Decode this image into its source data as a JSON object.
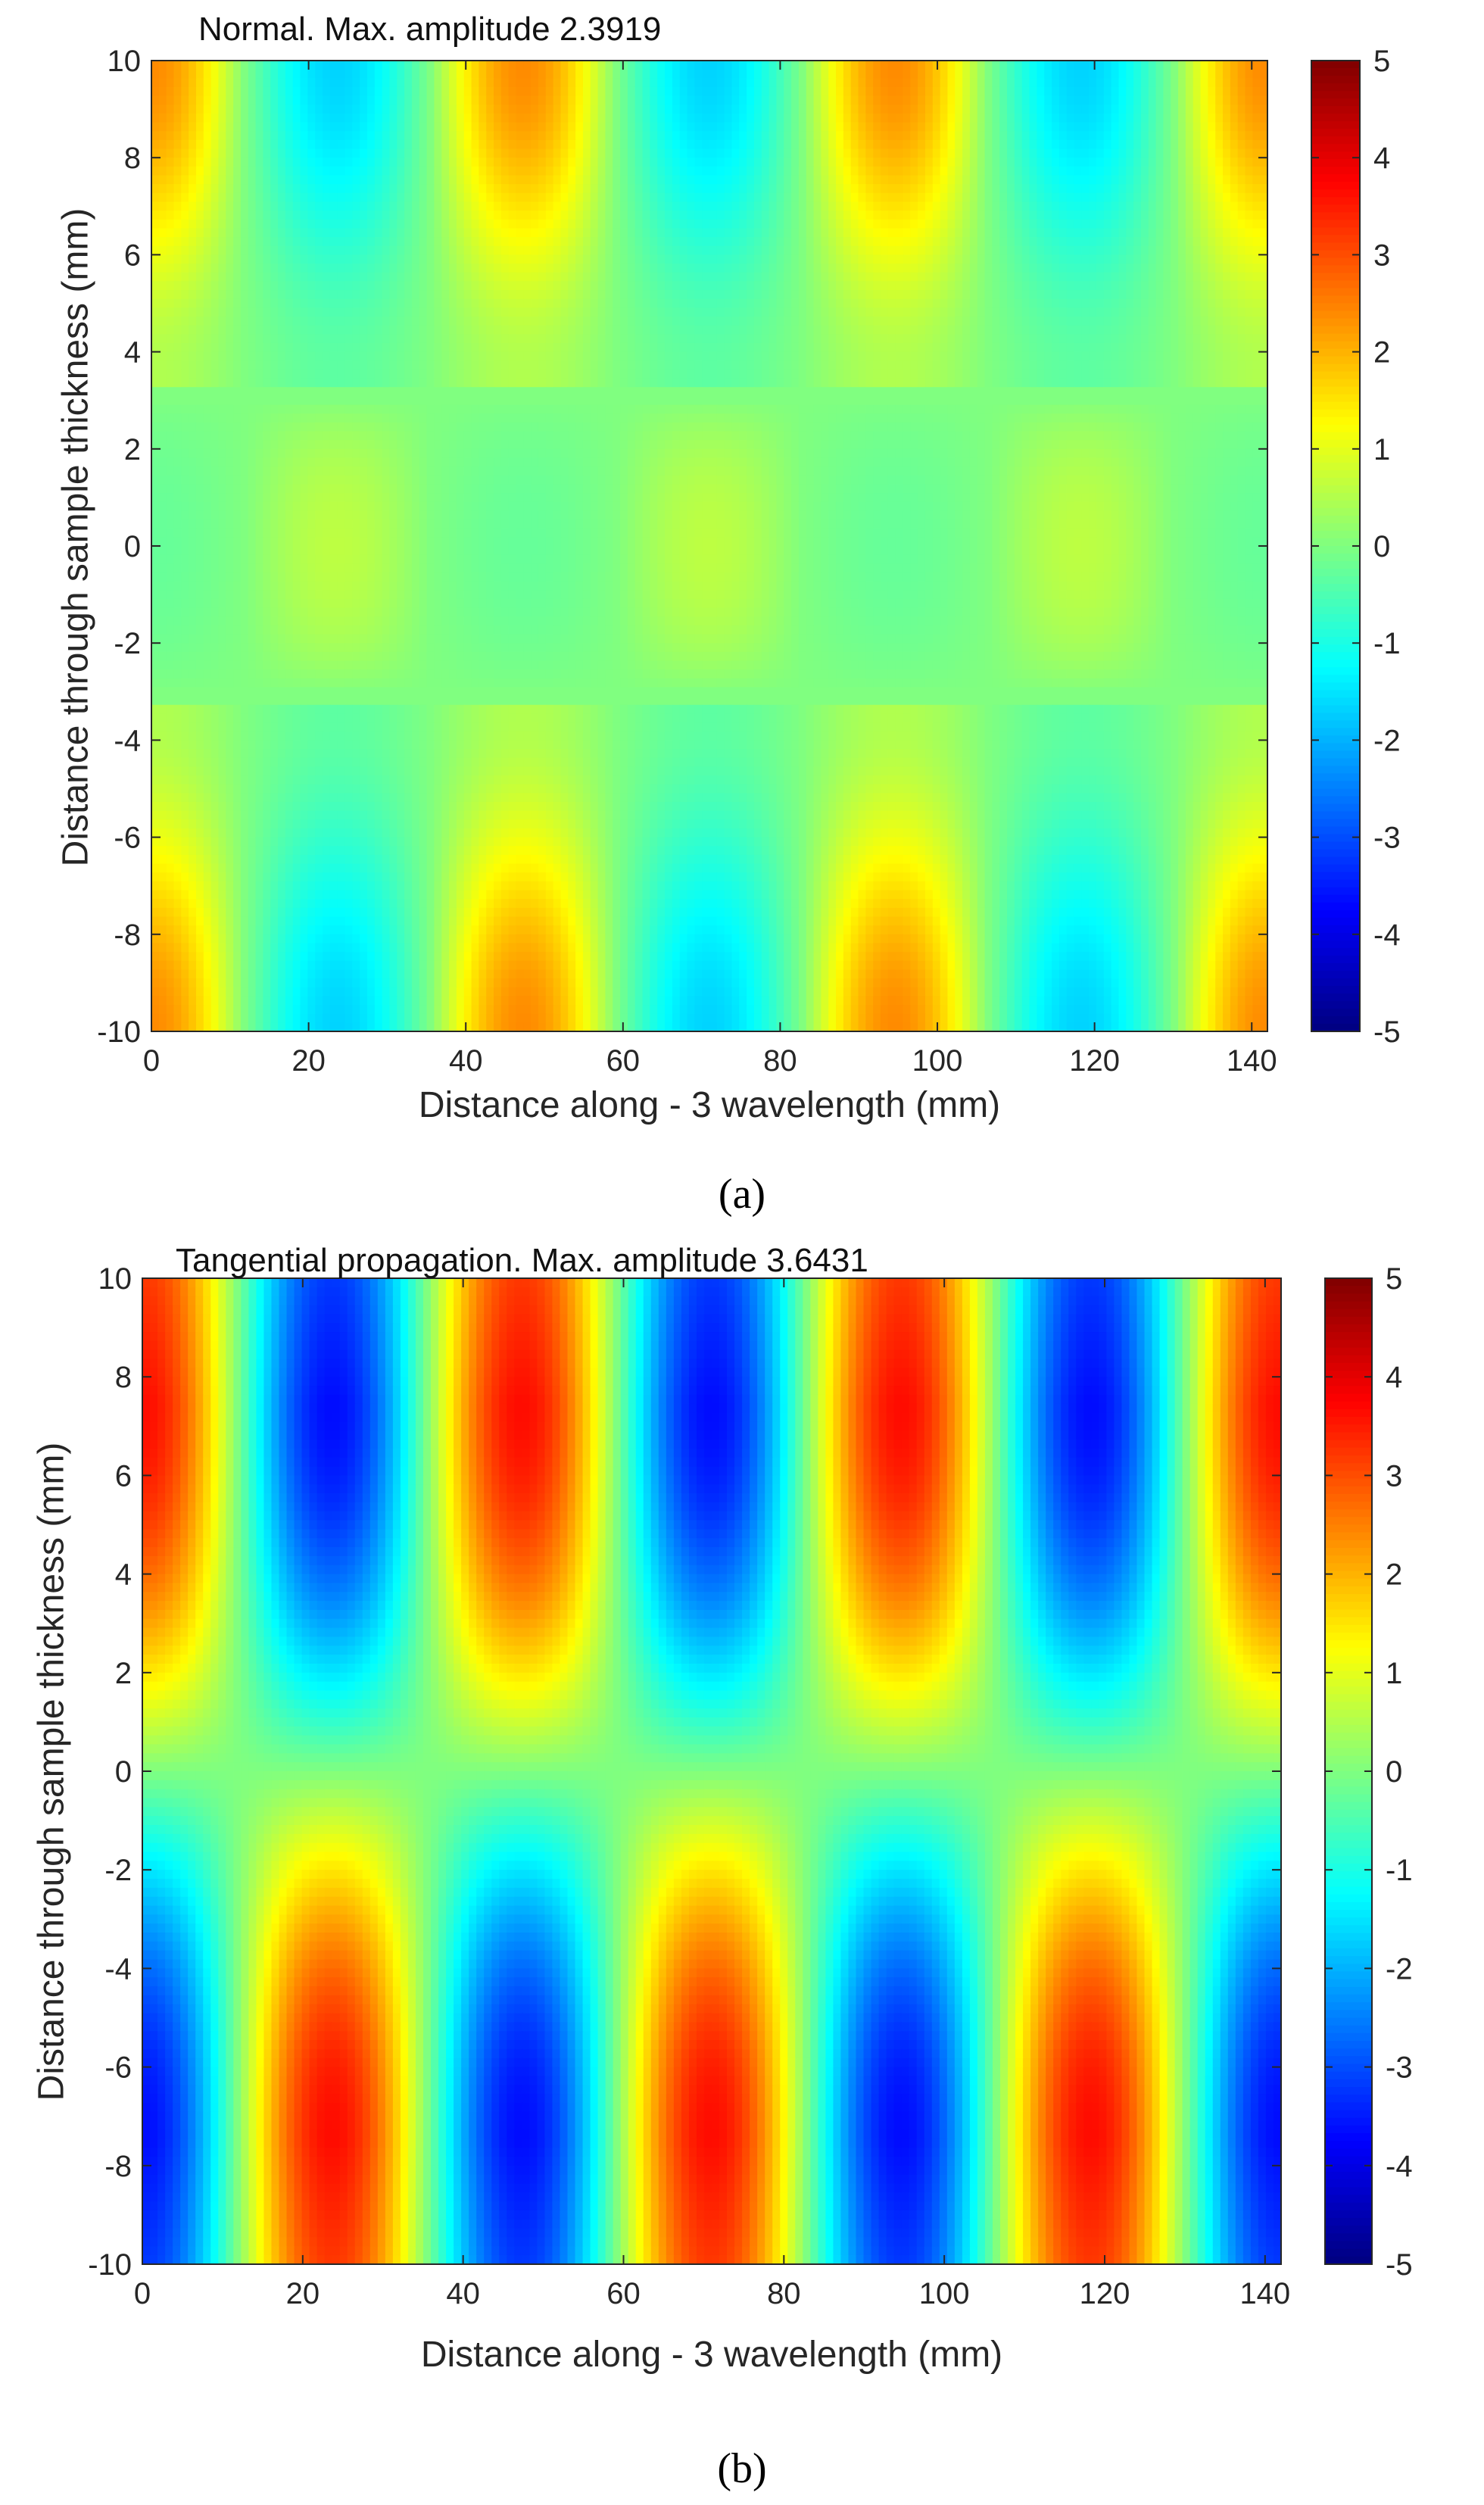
{
  "caption_a": "(a)",
  "caption_b": "(b)",
  "chart_data": [
    {
      "type": "heatmap",
      "title": "Normal. Max. amplitude 2.3919",
      "xlabel": "Distance along - 3 wavelength (mm)",
      "ylabel": "Distance through sample thickness (mm)",
      "xlim": [
        0,
        142
      ],
      "ylim": [
        -10,
        10
      ],
      "xticks": [
        0,
        20,
        40,
        60,
        80,
        100,
        120,
        140
      ],
      "yticks": [
        -10,
        -8,
        -6,
        -4,
        -2,
        0,
        2,
        4,
        6,
        8,
        10
      ],
      "colorbar": {
        "range": [
          -5,
          5
        ],
        "ticks": [
          5,
          4,
          3,
          2,
          1,
          0,
          -1,
          -2,
          -3,
          -4,
          -5
        ],
        "colormap": "jet"
      },
      "max_amplitude": 2.3919,
      "wavelength_mm": 47.3,
      "field_model": "surface waves |y|>3.5 mm: A*cos(2*pi*x/wavelength) top, -A*cos top-shifted; core |y|<3 mm weak alternating lobes",
      "peaks": [
        {
          "x": 0,
          "y": 10,
          "value": 2.39
        },
        {
          "x": 47,
          "y": 10,
          "value": 2.39
        },
        {
          "x": 94,
          "y": 10,
          "value": 2.39
        },
        {
          "x": 24,
          "y": 10,
          "value": -1.6
        },
        {
          "x": 118,
          "y": 10,
          "value": -1.6
        },
        {
          "x": 24,
          "y": -10,
          "value": -1.6
        },
        {
          "x": 71,
          "y": -10,
          "value": -1.6
        },
        {
          "x": 47,
          "y": -10,
          "value": 2.39
        },
        {
          "x": 94,
          "y": -10,
          "value": 2.39
        },
        {
          "x": 24,
          "y": 0,
          "value": 0.6
        },
        {
          "x": 71,
          "y": 0,
          "value": 0.6
        },
        {
          "x": 118,
          "y": 0,
          "value": 0.6
        }
      ]
    },
    {
      "type": "heatmap",
      "title": "Tangential propagation. Max. amplitude 3.6431",
      "xlabel": "Distance along - 3 wavelength (mm)",
      "ylabel": "Distance through sample thickness (mm)",
      "xlim": [
        0,
        142
      ],
      "ylim": [
        -10,
        10
      ],
      "xticks": [
        0,
        20,
        40,
        60,
        80,
        100,
        120,
        140
      ],
      "yticks": [
        -10,
        -8,
        -6,
        -4,
        -2,
        0,
        2,
        4,
        6,
        8,
        10
      ],
      "colorbar": {
        "range": [
          -5,
          5
        ],
        "ticks": [
          5,
          4,
          3,
          2,
          1,
          0,
          -1,
          -2,
          -3,
          -4,
          -5
        ],
        "colormap": "jet"
      },
      "max_amplitude": 3.6431,
      "wavelength_mm": 47.3,
      "field_model": "antisymmetric: top half +A*cos(2*pi*x/wavelength), bottom half -A*cos, node at y=0",
      "peaks": [
        {
          "x": 0,
          "y": 7,
          "value": 3.64
        },
        {
          "x": 47,
          "y": 7,
          "value": 3.64
        },
        {
          "x": 94,
          "y": 7,
          "value": 3.64
        },
        {
          "x": 24,
          "y": 7,
          "value": -3.64
        },
        {
          "x": 71,
          "y": 7,
          "value": -3.64
        },
        {
          "x": 118,
          "y": 7,
          "value": -3.64
        },
        {
          "x": 24,
          "y": -7,
          "value": 3.64
        },
        {
          "x": 71,
          "y": -7,
          "value": 3.64
        },
        {
          "x": 118,
          "y": -7,
          "value": 3.64
        },
        {
          "x": 47,
          "y": -7,
          "value": -3.64
        },
        {
          "x": 94,
          "y": -7,
          "value": -3.64
        }
      ]
    }
  ]
}
